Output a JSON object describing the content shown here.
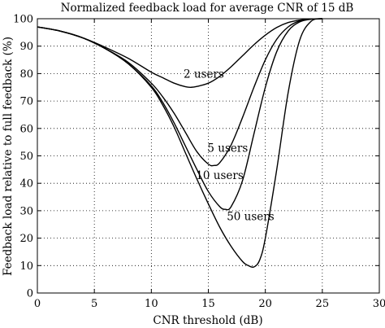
{
  "chart_data": {
    "type": "line",
    "title": "Normalized feedback load for average CNR of 15 dB",
    "xlabel": "CNR threshold (dB)",
    "ylabel": "Feedback load relative to full feedback (%)",
    "xlim": [
      0,
      30
    ],
    "ylim": [
      0,
      100
    ],
    "xticks": [
      "0",
      "5",
      "10",
      "15",
      "20",
      "25",
      "30"
    ],
    "yticks": [
      "0",
      "10",
      "20",
      "30",
      "40",
      "50",
      "60",
      "70",
      "80",
      "90",
      "100"
    ],
    "grid": true,
    "series": [
      {
        "name": "2 users",
        "x": [
          0,
          2,
          4,
          6,
          8,
          10,
          11,
          12,
          13,
          13.5,
          14,
          15,
          16,
          17,
          18,
          19,
          20,
          21,
          22,
          23,
          24,
          25
        ],
        "y": [
          97,
          95.5,
          93,
          89.5,
          85.5,
          80.5,
          78.5,
          76.5,
          75.2,
          75,
          75.3,
          76.5,
          79,
          82.5,
          86.5,
          90.5,
          94,
          96.8,
          98.6,
          99.5,
          99.9,
          100
        ]
      },
      {
        "name": "5 users",
        "x": [
          0,
          2,
          4,
          6,
          8,
          10,
          11,
          12,
          13,
          14,
          15,
          15.5,
          16,
          17,
          18,
          19,
          20,
          21,
          22,
          23,
          24,
          25
        ],
        "y": [
          97,
          95.5,
          93,
          89,
          84,
          76.5,
          71.5,
          65.5,
          58.5,
          51.5,
          47,
          46.5,
          47.5,
          54,
          64,
          75,
          85,
          92.5,
          97,
          99.2,
          99.9,
          100
        ]
      },
      {
        "name": "10 users",
        "x": [
          0,
          2,
          4,
          6,
          8,
          10,
          11,
          12,
          13,
          14,
          15,
          16,
          16.5,
          17,
          18,
          19,
          20,
          21,
          22,
          23,
          24,
          25
        ],
        "y": [
          97,
          95.5,
          93,
          89,
          83.5,
          75.5,
          69.5,
          62,
          53.5,
          45,
          37,
          31.5,
          30.5,
          31.5,
          41,
          58,
          75,
          88,
          95.5,
          98.8,
          99.8,
          100
        ]
      },
      {
        "name": "50 users",
        "x": [
          0,
          2,
          4,
          6,
          8,
          10,
          11,
          12,
          13,
          14,
          15,
          16,
          17,
          18,
          18.5,
          19,
          19.5,
          20,
          21,
          22,
          23,
          24,
          25
        ],
        "y": [
          97,
          95.5,
          93,
          89,
          83.5,
          75,
          68.5,
          60.5,
          51,
          41.5,
          32.5,
          24,
          17,
          11.5,
          10,
          9.5,
          12,
          20,
          45,
          73,
          92,
          99,
          100
        ]
      }
    ],
    "annotations": [
      {
        "text": "2 users",
        "x": 14.6,
        "y": 78.5
      },
      {
        "text": "5 users",
        "x": 16.7,
        "y": 51.5
      },
      {
        "text": "10 users",
        "x": 16.0,
        "y": 41.5
      },
      {
        "text": "50 users",
        "x": 18.7,
        "y": 26.5
      }
    ]
  }
}
